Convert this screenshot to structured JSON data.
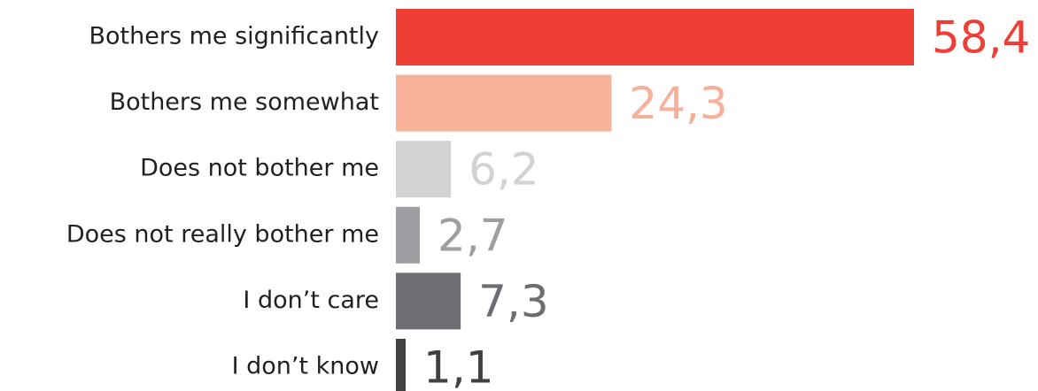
{
  "chart_data": {
    "type": "bar",
    "orientation": "horizontal",
    "categories": [
      "Bothers me significantly",
      "Bothers me somewhat",
      "Does not bother me",
      "Does not really bother me",
      "I don’t care",
      "I don’t know"
    ],
    "values": [
      58.4,
      24.3,
      6.2,
      2.7,
      7.3,
      1.1
    ],
    "value_labels": [
      "58,4",
      "24,3",
      "6,2",
      "2,7",
      "7,3",
      "1,1"
    ],
    "colors": [
      "#ef3e36",
      "#f7b09a",
      "#d1d2d4",
      "#9d9ea2",
      "#6d6e72",
      "#414042"
    ]
  }
}
